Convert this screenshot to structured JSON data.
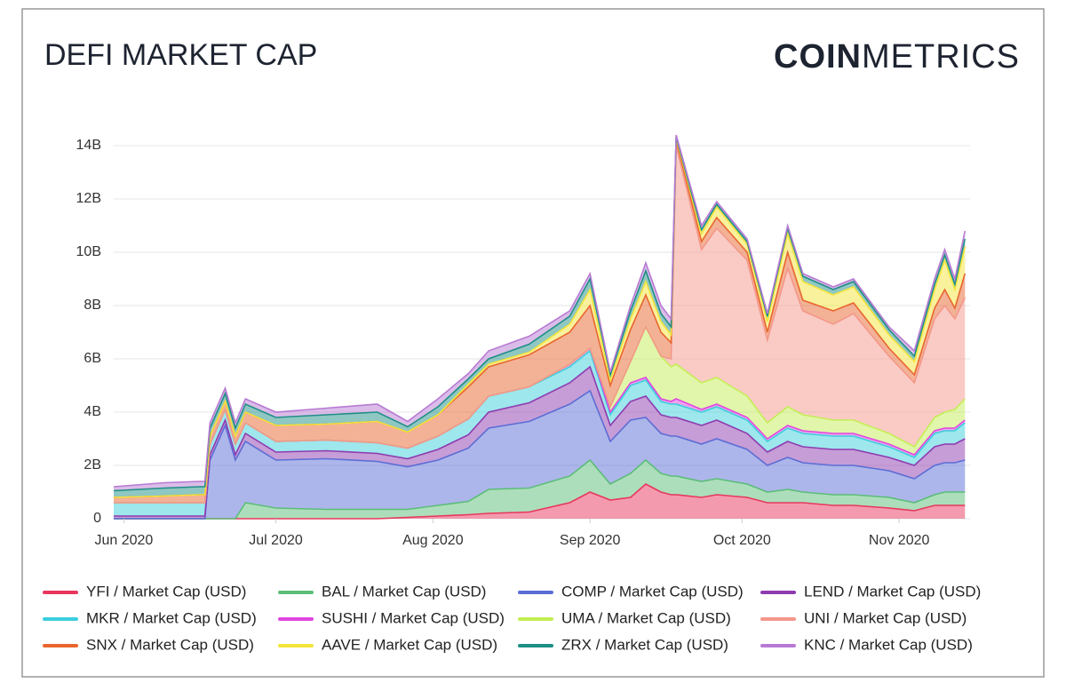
{
  "header": {
    "title": "DEFI MARKET CAP",
    "logo_bold": "COIN",
    "logo_light": "METRICS"
  },
  "chart_data": {
    "type": "stacked-area",
    "x": [
      0,
      10,
      17,
      18,
      19,
      22,
      24,
      26,
      32,
      42,
      52,
      58,
      64,
      70,
      74,
      82,
      90,
      94,
      98,
      102,
      105,
      108,
      110,
      111,
      116,
      119,
      125,
      129,
      133,
      136,
      142,
      146,
      153,
      158,
      162,
      164,
      166,
      168
    ],
    "xlim": [
      0,
      169
    ],
    "xticks": [
      {
        "value": 2,
        "label": "Jun 2020"
      },
      {
        "value": 32,
        "label": "Jul 2020"
      },
      {
        "value": 63,
        "label": "Aug 2020"
      },
      {
        "value": 94,
        "label": "Sep 2020"
      },
      {
        "value": 124,
        "label": "Oct 2020"
      },
      {
        "value": 155,
        "label": "Nov 2020"
      }
    ],
    "ylim": [
      0,
      14.8
    ],
    "yticks": [
      0,
      {
        "value": 2,
        "label": "2B"
      },
      {
        "value": 4,
        "label": "4B"
      },
      {
        "value": 6,
        "label": "6B"
      },
      {
        "value": 8,
        "label": "8B"
      },
      {
        "value": 10,
        "label": "10B"
      },
      {
        "value": 12,
        "label": "12B"
      },
      {
        "value": 14,
        "label": "14B"
      }
    ],
    "grid": true,
    "series": [
      {
        "name": "YFI / Market Cap (USD)",
        "color": "#e8365d",
        "values": [
          0,
          0,
          0,
          0,
          0,
          0,
          0,
          0,
          0,
          0,
          0,
          0.05,
          0.1,
          0.15,
          0.2,
          0.25,
          0.6,
          1.0,
          0.7,
          0.8,
          1.3,
          1.0,
          0.9,
          0.9,
          0.8,
          0.9,
          0.8,
          0.6,
          0.6,
          0.6,
          0.5,
          0.5,
          0.4,
          0.3,
          0.5,
          0.5,
          0.5,
          0.5
        ]
      },
      {
        "name": "BAL / Market Cap (USD)",
        "color": "#5bbd78",
        "values": [
          0,
          0,
          0,
          0,
          0,
          0,
          0,
          0.6,
          0.4,
          0.35,
          0.35,
          0.3,
          0.4,
          0.5,
          0.9,
          0.9,
          1.0,
          1.2,
          0.6,
          0.9,
          0.9,
          0.7,
          0.7,
          0.7,
          0.6,
          0.6,
          0.5,
          0.4,
          0.5,
          0.4,
          0.4,
          0.4,
          0.4,
          0.3,
          0.4,
          0.5,
          0.5,
          0.5
        ]
      },
      {
        "name": "COMP / Market Cap (USD)",
        "color": "#5b6dd5",
        "values": [
          0,
          0,
          0,
          0,
          2.2,
          3.5,
          2.2,
          2.3,
          1.8,
          1.9,
          1.8,
          1.6,
          1.7,
          2.0,
          2.3,
          2.5,
          2.7,
          2.6,
          1.6,
          2.0,
          1.6,
          1.5,
          1.5,
          1.5,
          1.4,
          1.5,
          1.3,
          1.0,
          1.2,
          1.1,
          1.1,
          1.1,
          1.0,
          0.9,
          1.1,
          1.1,
          1.1,
          1.2
        ]
      },
      {
        "name": "LEND / Market Cap (USD)",
        "color": "#8e3bb0",
        "values": [
          0.1,
          0.1,
          0.1,
          0.1,
          0.2,
          0.2,
          0.2,
          0.3,
          0.3,
          0.3,
          0.3,
          0.3,
          0.4,
          0.5,
          0.6,
          0.7,
          0.8,
          0.9,
          0.6,
          0.7,
          0.8,
          0.7,
          0.7,
          0.7,
          0.7,
          0.7,
          0.6,
          0.5,
          0.6,
          0.6,
          0.6,
          0.6,
          0.5,
          0.5,
          0.7,
          0.7,
          0.7,
          0.8
        ]
      },
      {
        "name": "MKR / Market Cap (USD)",
        "color": "#3ccfdc",
        "values": [
          0.5,
          0.5,
          0.5,
          0.5,
          0.4,
          0.4,
          0.4,
          0.4,
          0.4,
          0.4,
          0.4,
          0.4,
          0.5,
          0.6,
          0.6,
          0.6,
          0.6,
          0.6,
          0.4,
          0.6,
          0.6,
          0.5,
          0.5,
          0.5,
          0.5,
          0.5,
          0.5,
          0.4,
          0.5,
          0.5,
          0.5,
          0.5,
          0.4,
          0.3,
          0.5,
          0.5,
          0.5,
          0.6
        ]
      },
      {
        "name": "SUSHI / Market Cap (USD)",
        "color": "#e046e0",
        "values": [
          0,
          0,
          0,
          0,
          0,
          0,
          0,
          0,
          0,
          0,
          0,
          0,
          0,
          0,
          0,
          0,
          0.1,
          0.1,
          0.1,
          0.1,
          0.1,
          0.1,
          0.1,
          0.2,
          0.1,
          0.1,
          0.1,
          0.1,
          0.1,
          0.1,
          0.1,
          0.1,
          0.1,
          0.1,
          0.1,
          0.1,
          0.1,
          0.1
        ]
      },
      {
        "name": "UMA / Market Cap (USD)",
        "color": "#c4ee55",
        "values": [
          0,
          0,
          0,
          0,
          0,
          0,
          0,
          0,
          0,
          0,
          0,
          0,
          0,
          0,
          0,
          0,
          0,
          0,
          0.2,
          0.8,
          1.9,
          1.6,
          1.3,
          1.3,
          1.0,
          1.0,
          0.8,
          0.6,
          0.7,
          0.6,
          0.5,
          0.5,
          0.4,
          0.3,
          0.5,
          0.6,
          0.7,
          0.8
        ]
      },
      {
        "name": "UNI / Market Cap (USD)",
        "color": "#f4978a",
        "values": [
          0,
          0,
          0,
          0,
          0,
          0,
          0,
          0,
          0,
          0,
          0,
          0,
          0,
          0,
          0,
          0,
          0,
          0,
          0,
          0,
          0,
          0,
          0.3,
          8.2,
          5.0,
          5.6,
          5.1,
          3.1,
          5.2,
          3.9,
          3.6,
          4.0,
          2.9,
          2.4,
          3.7,
          4.0,
          3.4,
          3.8
        ]
      },
      {
        "name": "SNX / Market Cap (USD)",
        "color": "#e8662e",
        "values": [
          0.2,
          0.25,
          0.3,
          0.3,
          0.3,
          0.3,
          0.3,
          0.4,
          0.6,
          0.6,
          0.8,
          0.6,
          0.8,
          1.2,
          1.1,
          1.2,
          1.2,
          1.6,
          0.8,
          1.2,
          1.2,
          0.9,
          0.6,
          0.2,
          0.3,
          0.4,
          0.3,
          0.3,
          0.6,
          0.4,
          0.5,
          0.4,
          0.3,
          0.3,
          0.4,
          0.6,
          0.4,
          0.9
        ]
      },
      {
        "name": "AAVE / Market Cap (USD)",
        "color": "#f4e43a",
        "values": [
          0,
          0,
          0,
          0,
          0,
          0,
          0,
          0,
          0,
          0,
          0,
          0,
          0,
          0.1,
          0.1,
          0.1,
          0.3,
          0.6,
          0.2,
          0.4,
          0.5,
          0.4,
          0.3,
          0.1,
          0.3,
          0.4,
          0.3,
          0.4,
          0.7,
          0.7,
          0.6,
          0.6,
          0.5,
          0.5,
          0.7,
          1.1,
          0.7,
          1.0
        ]
      },
      {
        "name": "ZRX / Market Cap (USD)",
        "color": "#1f8f86",
        "values": [
          0.25,
          0.3,
          0.3,
          0.3,
          0.3,
          0.3,
          0.3,
          0.3,
          0.3,
          0.35,
          0.35,
          0.2,
          0.3,
          0.2,
          0.2,
          0.3,
          0.3,
          0.4,
          0.2,
          0.3,
          0.4,
          0.3,
          0.3,
          0.05,
          0.15,
          0.1,
          0.1,
          0.2,
          0.2,
          0.2,
          0.2,
          0.2,
          0.2,
          0.2,
          0.2,
          0.2,
          0.2,
          0.3
        ]
      },
      {
        "name": "KNC / Market Cap (USD)",
        "color": "#b77ad3",
        "values": [
          0.15,
          0.2,
          0.2,
          0.2,
          0.2,
          0.2,
          0.2,
          0.2,
          0.2,
          0.25,
          0.3,
          0.2,
          0.3,
          0.2,
          0.3,
          0.3,
          0.2,
          0.2,
          0.1,
          0.2,
          0.3,
          0.3,
          0.3,
          0.05,
          0.15,
          0.1,
          0.1,
          0.1,
          0.1,
          0.1,
          0.1,
          0.1,
          0.1,
          0.2,
          0.2,
          0.2,
          0.2,
          0.3
        ]
      }
    ]
  }
}
